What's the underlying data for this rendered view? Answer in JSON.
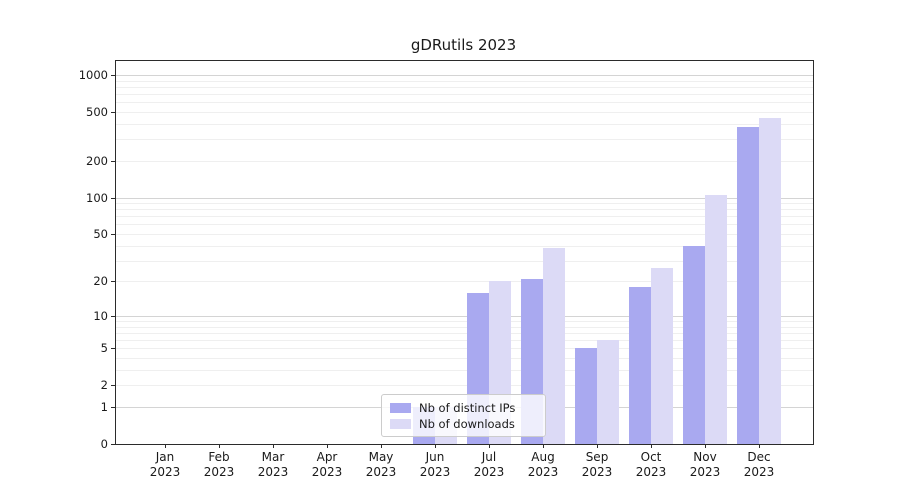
{
  "title": "gDRutils 2023",
  "chart_data": {
    "type": "bar",
    "title": "gDRutils 2023",
    "categories": [
      "Jan 2023",
      "Feb 2023",
      "Mar 2023",
      "Apr 2023",
      "May 2023",
      "Jun 2023",
      "Jul 2023",
      "Aug 2023",
      "Sep 2023",
      "Oct 2023",
      "Nov 2023",
      "Dec 2023"
    ],
    "series": [
      {
        "name": "Nb of distinct IPs",
        "color": "#a9a9f0",
        "values": [
          0,
          0,
          0,
          0,
          0,
          1,
          16,
          21,
          5,
          18,
          40,
          380
        ]
      },
      {
        "name": "Nb of downloads",
        "color": "#dcdaf6",
        "values": [
          0,
          0,
          0,
          0,
          0,
          1,
          20,
          38,
          6,
          26,
          105,
          450
        ]
      }
    ],
    "xlabel": "",
    "ylabel": "",
    "yscale": "log10(1+v)",
    "ylim": [
      0,
      1300
    ],
    "y_ticks": [
      0,
      1,
      2,
      5,
      10,
      20,
      50,
      100,
      200,
      500,
      1000
    ],
    "grid": true,
    "legend_position": "lower center"
  },
  "colors": {
    "grid_major": "#d4d4d4",
    "grid_minor": "#efefef",
    "frame": "#2b2b2b",
    "text": "#1a1a1a"
  }
}
